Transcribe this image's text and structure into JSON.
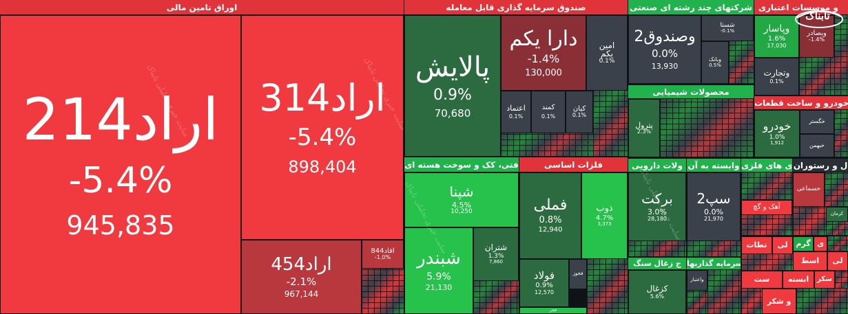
{
  "sectors": {
    "oraq": "اوراق تامین مالی",
    "sandoq": "صندوق سرمایه گذاری قابل معامله",
    "chand": "شرکتهای چند رشته ای صنعتی",
    "bank": "و موسسات اعتباری",
    "shimi": "محصولات شیمیایی",
    "khodro": "خودرو و ساخت قطعات",
    "naft": "فتی، کک و سوخت هسته ای",
    "felezat": "فلزات اساسی",
    "daru": "ولات دارویی",
    "vabaste": "وابسته به آن",
    "haml": "ل و رستوران",
    "felezi": "ی های فلزی",
    "zoghal": "ج زغال سنگ",
    "sarmaye": "سرمایه گذاریها"
  },
  "tiles": {
    "arad214": {
      "name": "اراد214",
      "pct": "-5.4%",
      "vol": "945,835"
    },
    "arad314": {
      "name": "اراد314",
      "pct": "-5.4%",
      "vol": "898,404"
    },
    "arad454": {
      "name": "اراد454",
      "pct": "-2.1%",
      "vol": "967,144"
    },
    "afad844": {
      "name": "افاد844",
      "pct": "-1.0%"
    },
    "palaysh": {
      "name": "پالایش",
      "pct": "0.9%",
      "vol": "70,680"
    },
    "dara": {
      "name": "دارا یکم",
      "pct": "-1.4%",
      "vol": "130,000"
    },
    "amin": {
      "name1": "امین",
      "name2": "یکم",
      "pct": "0.1%"
    },
    "kian": {
      "name": "کیان",
      "pct": "0.1%"
    },
    "etemad": {
      "name": "اعتماد",
      "pct": "0.1%"
    },
    "kamand": {
      "name": "کمند",
      "pct": "0.1%"
    },
    "vsandoq": {
      "name": "وصندوق2",
      "pct": "0.0%",
      "vol": "13,930"
    },
    "shasta": {
      "name": "شستا",
      "pct": "-0.1%"
    },
    "vbank": {
      "name": "وبانک",
      "pct": "0.5%"
    },
    "vpasar": {
      "name": "وپاسار",
      "pct": "1.6%",
      "vol": "17,030"
    },
    "vsadr": {
      "name": "وبصادر",
      "pct": "-1.4%"
    },
    "vtjart": {
      "name": "وتجارت",
      "pct": "0.1%"
    },
    "petrol": {
      "name": "پترول",
      "pct": "2.3%"
    },
    "khodro": {
      "name": "خودرو",
      "pct": "1.0%",
      "vol": "1,912"
    },
    "khgostar": {
      "name": "خگستر"
    },
    "khbahman": {
      "name": "خبهمن"
    },
    "shepna": {
      "name": "شپنا",
      "pct": "4.5%",
      "vol": "10,250"
    },
    "shbandar": {
      "name": "شبندر",
      "pct": "5.9%",
      "vol": "21,130"
    },
    "shtran": {
      "name": "شتران",
      "pct": "1.3%",
      "vol": "7,860"
    },
    "fameli": {
      "name": "فملی",
      "pct": "0.8%",
      "vol": "12,940"
    },
    "zob": {
      "name": "ذوب",
      "pct": "4.7%",
      "vol": "3,373"
    },
    "foolad": {
      "name": "فولاد",
      "pct": "0.9%",
      "vol": "12,570"
    },
    "fkhooz": {
      "name": "فخوز"
    },
    "fajr": {
      "name": "فجر"
    },
    "barkat": {
      "name": "برکت",
      "pct": "3.0%",
      "vol": "28,180"
    },
    "sep2": {
      "name": "سپ2",
      "pct": "0.0%",
      "vol": "21,970"
    },
    "kzghal": {
      "name": "کزغال",
      "pct": "5.6%"
    },
    "vaezar": {
      "name": "واعتبار"
    },
    "haml1": {
      "name": "حسماعی"
    },
    "haml2": {
      "name": "کرمان"
    },
    "felez1": {
      "name": "آهک و گچ"
    },
    "r1": "تطات",
    "r2": "لی",
    "r3": "گرم",
    "r4": "ی",
    "r5": "اسط",
    "r6": "لی",
    "r7": "ست",
    "r8": "ابسته",
    "r9": "سکر",
    "r10": "و شکر"
  },
  "watermark": "سایت خبری تحلیلی تابناک",
  "logo": "تابناک"
}
